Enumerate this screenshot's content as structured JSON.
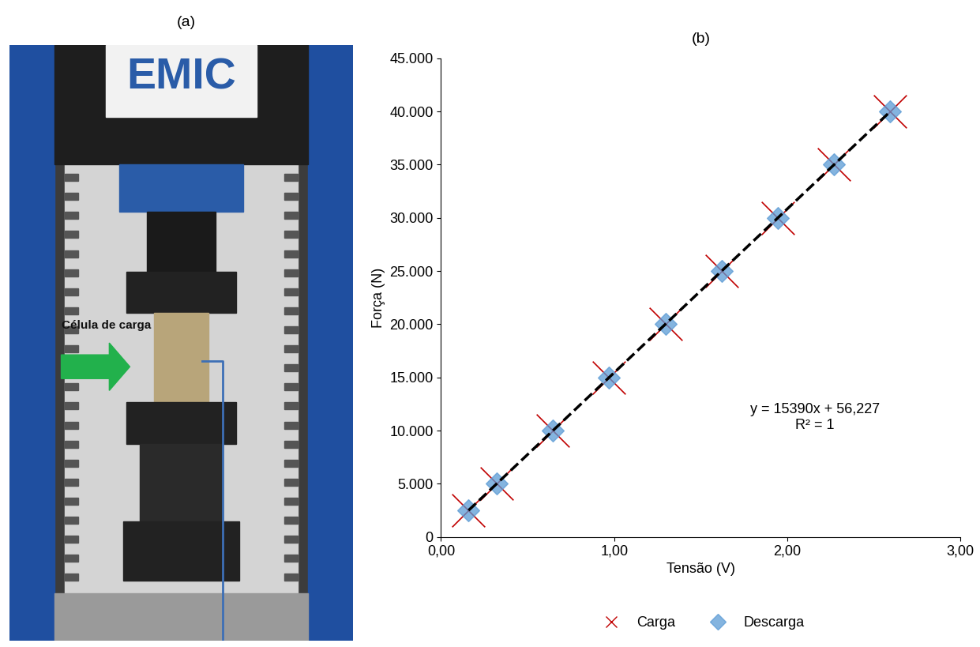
{
  "photo": {
    "title": "(a)",
    "brand": "EMIC",
    "annotation": "Célula de carga"
  },
  "chart_data": {
    "type": "scatter",
    "title": "(b)",
    "x_label": "Tensão (V)",
    "y_label": "Força (N)",
    "xlim": [
      0,
      3
    ],
    "ylim": [
      0,
      45000
    ],
    "xticks": [
      {
        "value": 0,
        "label": "0,00"
      },
      {
        "value": 1,
        "label": "1,00"
      },
      {
        "value": 2,
        "label": "2,00"
      },
      {
        "value": 3,
        "label": "3,00"
      }
    ],
    "yticks": [
      0,
      {
        "value": 5000,
        "label": "5.000"
      },
      {
        "value": 10000,
        "label": "10.000"
      },
      {
        "value": 15000,
        "label": "15.000"
      },
      {
        "value": 20000,
        "label": "20.000"
      },
      {
        "value": 25000,
        "label": "25.000"
      },
      {
        "value": 30000,
        "label": "30.000"
      },
      {
        "value": 35000,
        "label": "35.000"
      },
      {
        "value": 40000,
        "label": "40.000"
      },
      {
        "value": 45000,
        "label": "45.000"
      }
    ],
    "grid": false,
    "legend": "lower center",
    "series": [
      {
        "name": "Carga",
        "color": "#c00000",
        "marker": "x",
        "x": [
          0.159,
          0.321,
          0.646,
          0.971,
          1.296,
          1.621,
          1.946,
          2.271,
          2.595
        ],
        "values": [
          2500,
          5000,
          10000,
          15000,
          20000,
          25000,
          30000,
          35000,
          40000
        ]
      },
      {
        "name": "Descarga",
        "color": "#5b9bd5",
        "marker": "D",
        "x": [
          0.159,
          0.321,
          0.646,
          0.971,
          1.296,
          1.621,
          1.946,
          2.271,
          2.595
        ],
        "values": [
          2500,
          5000,
          10000,
          15000,
          20000,
          25000,
          30000,
          35000,
          40000
        ]
      }
    ],
    "trendline": {
      "slope": 15390,
      "intercept": 56.227,
      "color": "#000000",
      "line_style": "dashed"
    },
    "annotations": [
      "y = 15390x + 56,227",
      "R² = 1"
    ]
  }
}
